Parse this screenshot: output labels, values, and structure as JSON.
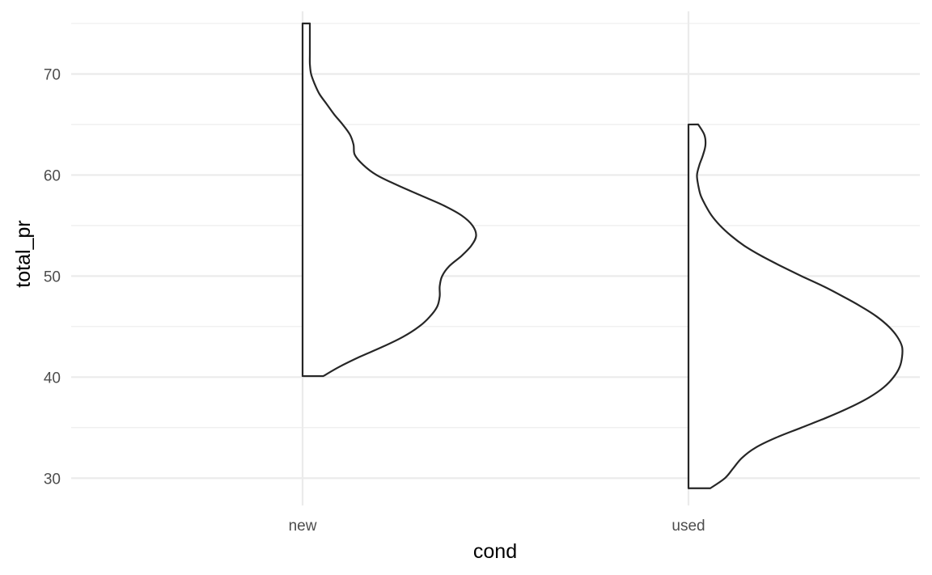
{
  "chart_data": {
    "type": "half-violin",
    "xlabel": "cond",
    "ylabel": "total_pr",
    "categories": [
      "new",
      "used"
    ],
    "ylim": [
      27.3,
      76.2
    ],
    "y_ticks": [
      30,
      40,
      50,
      60,
      70
    ],
    "y_minor_ticks": [
      35,
      45,
      55,
      65,
      75
    ],
    "y_tick_labels": [
      "30",
      "40",
      "50",
      "60",
      "70"
    ],
    "grid": true,
    "density_scale_max": 1.0,
    "series": [
      {
        "category": "new",
        "y_range": [
          40.1,
          75.0
        ],
        "density": [
          [
            40.1,
            0.17
          ],
          [
            41.0,
            0.3
          ],
          [
            42.0,
            0.47
          ],
          [
            43.0,
            0.66
          ],
          [
            44.0,
            0.83
          ],
          [
            45.0,
            0.96
          ],
          [
            46.0,
            1.05
          ],
          [
            47.0,
            1.11
          ],
          [
            48.0,
            1.13
          ],
          [
            49.0,
            1.13
          ],
          [
            50.0,
            1.15
          ],
          [
            51.0,
            1.21
          ],
          [
            52.0,
            1.31
          ],
          [
            53.0,
            1.39
          ],
          [
            54.0,
            1.43
          ],
          [
            55.0,
            1.4
          ],
          [
            56.0,
            1.31
          ],
          [
            57.0,
            1.16
          ],
          [
            58.0,
            0.97
          ],
          [
            59.0,
            0.78
          ],
          [
            60.0,
            0.61
          ],
          [
            61.0,
            0.5
          ],
          [
            62.0,
            0.43
          ],
          [
            63.0,
            0.42
          ],
          [
            64.0,
            0.39
          ],
          [
            65.0,
            0.33
          ],
          [
            66.0,
            0.26
          ],
          [
            67.0,
            0.2
          ],
          [
            68.0,
            0.14
          ],
          [
            69.0,
            0.1
          ],
          [
            70.0,
            0.07
          ],
          [
            71.0,
            0.06
          ],
          [
            72.0,
            0.06
          ],
          [
            73.0,
            0.06
          ],
          [
            74.0,
            0.06
          ],
          [
            75.0,
            0.06
          ]
        ]
      },
      {
        "category": "used",
        "y_range": [
          29.0,
          65.0
        ],
        "density": [
          [
            29.0,
            0.18
          ],
          [
            30.0,
            0.3
          ],
          [
            31.0,
            0.37
          ],
          [
            32.0,
            0.44
          ],
          [
            33.0,
            0.55
          ],
          [
            34.0,
            0.72
          ],
          [
            35.0,
            0.93
          ],
          [
            36.0,
            1.14
          ],
          [
            37.0,
            1.33
          ],
          [
            38.0,
            1.49
          ],
          [
            39.0,
            1.61
          ],
          [
            40.0,
            1.69
          ],
          [
            41.0,
            1.74
          ],
          [
            42.0,
            1.76
          ],
          [
            43.0,
            1.76
          ],
          [
            44.0,
            1.72
          ],
          [
            45.0,
            1.65
          ],
          [
            46.0,
            1.55
          ],
          [
            47.0,
            1.42
          ],
          [
            48.0,
            1.27
          ],
          [
            49.0,
            1.11
          ],
          [
            50.0,
            0.93
          ],
          [
            51.0,
            0.76
          ],
          [
            52.0,
            0.6
          ],
          [
            53.0,
            0.46
          ],
          [
            54.0,
            0.35
          ],
          [
            55.0,
            0.26
          ],
          [
            56.0,
            0.19
          ],
          [
            57.0,
            0.14
          ],
          [
            58.0,
            0.1
          ],
          [
            59.0,
            0.08
          ],
          [
            60.0,
            0.07
          ],
          [
            61.0,
            0.09
          ],
          [
            62.0,
            0.12
          ],
          [
            63.0,
            0.14
          ],
          [
            64.0,
            0.13
          ],
          [
            65.0,
            0.08
          ]
        ]
      }
    ]
  }
}
